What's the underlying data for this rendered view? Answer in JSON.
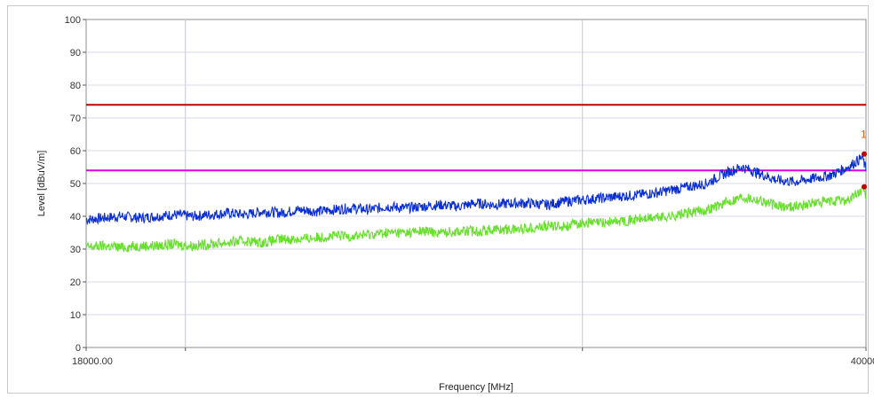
{
  "chart_data": {
    "type": "line",
    "xlabel": "Frequency [MHz]",
    "ylabel": "Level [dBuV/m]",
    "xlim": [
      18000,
      40000
    ],
    "ylim": [
      0,
      100
    ],
    "x_tick_labels": [
      "18000.00",
      "40000"
    ],
    "y_ticks": [
      0,
      10,
      20,
      30,
      40,
      50,
      60,
      70,
      80,
      90,
      100
    ],
    "y_tick_labels": [
      "0",
      "10",
      "20",
      "30",
      "40",
      "50",
      "60",
      "70",
      "80",
      "90",
      "100"
    ],
    "x_gridlines": [
      18000,
      20800,
      32000,
      40000
    ],
    "grid": true,
    "limit_lines": [
      {
        "value": 74,
        "color": "#c00000"
      },
      {
        "value": 54,
        "color": "#e000e0"
      }
    ],
    "series": [
      {
        "color": "#0a2ed6",
        "x": [
          18000,
          18500,
          19000,
          19500,
          20000,
          20500,
          21000,
          21500,
          22000,
          22500,
          23000,
          23500,
          24000,
          24500,
          25000,
          25500,
          26000,
          26500,
          27000,
          27500,
          28000,
          28500,
          29000,
          29500,
          30000,
          30500,
          31000,
          31500,
          32000,
          32500,
          33000,
          33500,
          34000,
          34500,
          35000,
          35500,
          36000,
          36500,
          37000,
          37500,
          38000,
          38500,
          39000,
          39500,
          39900,
          40000
        ],
        "values": [
          39,
          39.5,
          40,
          39.5,
          40,
          40.5,
          40,
          40.5,
          41,
          40.5,
          41.5,
          41,
          42,
          41.5,
          42,
          42.5,
          42,
          43,
          42.5,
          43,
          43.5,
          43,
          44,
          43.5,
          44,
          44,
          43.5,
          44.5,
          45,
          45.5,
          46,
          46.5,
          47,
          48,
          49,
          50,
          53,
          55,
          53,
          51,
          50.5,
          51.5,
          52.5,
          55,
          58,
          54
        ]
      },
      {
        "color": "#66e02a",
        "x": [
          18000,
          18500,
          19000,
          19500,
          20000,
          20500,
          21000,
          21500,
          22000,
          22500,
          23000,
          23500,
          24000,
          24500,
          25000,
          25500,
          26000,
          26500,
          27000,
          27500,
          28000,
          28500,
          29000,
          29500,
          30000,
          30500,
          31000,
          31500,
          32000,
          32500,
          33000,
          33500,
          34000,
          34500,
          35000,
          35500,
          36000,
          36500,
          37000,
          37500,
          38000,
          38500,
          39000,
          39500,
          39900,
          40000
        ],
        "values": [
          30.5,
          31,
          30.5,
          31,
          31,
          31.5,
          31,
          31.5,
          32,
          32.5,
          32,
          33,
          33,
          33.5,
          34,
          34,
          34.5,
          35,
          35,
          35.5,
          35,
          35.5,
          35.5,
          36,
          36,
          36.5,
          37,
          37,
          38,
          38,
          38.5,
          39,
          39.5,
          40,
          41,
          42,
          44,
          46,
          45,
          43,
          43,
          44,
          44.5,
          45,
          48,
          46
        ]
      }
    ],
    "markers": [
      {
        "label": "1",
        "x": 39950,
        "y": 59,
        "color": "#c00000"
      },
      {
        "label": "",
        "x": 39950,
        "y": 49,
        "color": "#c00000"
      }
    ]
  }
}
